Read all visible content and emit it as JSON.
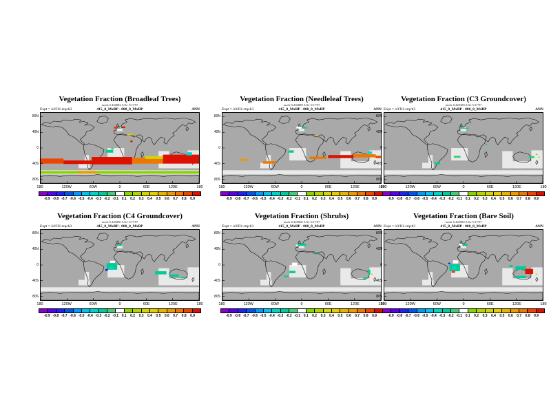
{
  "figure": {
    "background": "#ffffff",
    "layout": "2x3 montage of global vegetation-fraction anomaly maps"
  },
  "chart_data": {
    "type": "heatmap",
    "subtype": "global lat-lon difference maps, equirectangular 180W-180E / 90N-90S",
    "units": "vegetation fraction difference",
    "value_range": [
      -1,
      1
    ],
    "season": "ANN",
    "axes": {
      "x_ticks": [
        "180",
        "120W",
        "60W",
        "0",
        "60E",
        "120E",
        "180"
      ],
      "y_ticks": [
        "80N",
        "40N",
        "0",
        "40S",
        "80S"
      ]
    },
    "colorbar": {
      "tick_labels": [
        "-0.9",
        "-0.8",
        "-0.7",
        "-0.6",
        "-0.5",
        "-0.4",
        "-0.3",
        "-0.2",
        "-0.1",
        "0.1",
        "0.2",
        "0.3",
        "0.4",
        "0.5",
        "0.6",
        "0.7",
        "0.8",
        "0.9"
      ],
      "segment_colors": [
        "#8800cc",
        "#5500ee",
        "#2222ee",
        "#0055ee",
        "#0099ff",
        "#00c4f0",
        "#00d4c8",
        "#00cc99",
        "#44cc77",
        "#ffffff",
        "#88d400",
        "#b4d400",
        "#d4d400",
        "#e6cc00",
        "#e6b400",
        "#ee9900",
        "#ee7700",
        "#ee4400",
        "#dd1100"
      ]
    },
    "map_style": {
      "base_color": "#a9a9a9",
      "light_color": "#e9e9e9",
      "coast_color": "#141414",
      "light_regions": [
        [
          0,
          147,
          360,
          11
        ],
        [
          152,
          90,
          38,
          32
        ],
        [
          268,
          98,
          24,
          44
        ],
        [
          334,
          96,
          26,
          46
        ],
        [
          292,
          124,
          42,
          18
        ],
        [
          86,
          128,
          26,
          14
        ],
        [
          100,
          108,
          10,
          28
        ],
        [
          174,
          40,
          12,
          7
        ]
      ]
    },
    "panels": [
      {
        "slug": "broadleaf-trees",
        "title": "Vegetation Fraction (Broadleaf Trees)",
        "stats_line": "mode 0.426882 A/Se 5/17/97",
        "expt_label": "Expt = isYII1-trqch3",
        "diff_label": "415_0_MxBP - 000_0_MxBP",
        "season_label": "ANN",
        "patches": [
          [
            166,
            36,
            10,
            4,
            "#ee3300"
          ],
          [
            176,
            37,
            6,
            3,
            "#00cc99"
          ],
          [
            183,
            35,
            9,
            4,
            "#dd1100"
          ],
          [
            180,
            36,
            3,
            2,
            "#ffffff"
          ],
          [
            196,
            54,
            13,
            3,
            "#d4d400"
          ],
          [
            211,
            57,
            6,
            3,
            "#ee9900"
          ],
          [
            204,
            71,
            5,
            4,
            "#dd1100"
          ],
          [
            148,
            95,
            17,
            7,
            "#00cc99"
          ],
          [
            160,
            90,
            6,
            4,
            "#44cc77"
          ],
          [
            0,
            117,
            52,
            13,
            "#ee4400"
          ],
          [
            52,
            122,
            64,
            9,
            "#dd1100"
          ],
          [
            116,
            113,
            92,
            19,
            "#dd1100"
          ],
          [
            208,
            115,
            72,
            15,
            "#ee7700"
          ],
          [
            238,
            111,
            42,
            7,
            "#d4d400"
          ],
          [
            278,
            107,
            82,
            23,
            "#dd1100"
          ],
          [
            332,
            101,
            12,
            8,
            "#00d4c8"
          ],
          [
            0,
            149,
            360,
            7,
            "#88d400"
          ],
          [
            84,
            149,
            44,
            6,
            "#ee9900"
          ]
        ]
      },
      {
        "slug": "needleleaf-trees",
        "title": "Vegetation Fraction (Needleleaf Trees)",
        "stats_line": "mode 0.436880 A/Se 5/17/97",
        "expt_label": "Expt = isYII1-trqch3",
        "diff_label": "415_0_MxBP - 000_0_MxBP",
        "season_label": "ANN",
        "patches": [
          [
            168,
            35,
            12,
            5,
            "#ffffff"
          ],
          [
            180,
            36,
            9,
            4,
            "#00cc99"
          ],
          [
            190,
            37,
            4,
            3,
            "#33cc77"
          ],
          [
            210,
            57,
            8,
            3,
            "#d4d400"
          ],
          [
            150,
            96,
            12,
            6,
            "#00cc99"
          ],
          [
            198,
            112,
            38,
            6,
            "#ee7700"
          ],
          [
            240,
            108,
            58,
            8,
            "#dd1100"
          ],
          [
            298,
            106,
            50,
            8,
            "#ee7700"
          ],
          [
            348,
            110,
            12,
            6,
            "#ee4400"
          ],
          [
            92,
            124,
            30,
            6,
            "#ee7700"
          ],
          [
            40,
            118,
            20,
            5,
            "#ee9900"
          ],
          [
            330,
            99,
            10,
            6,
            "#00d4c8"
          ]
        ]
      },
      {
        "slug": "c3-groundcover",
        "title": "Vegetation Fraction (C3 Groundcover)",
        "stats_line": "mode 0.420390 A/Se 5/17/97",
        "expt_label": "Expt = isYII1-trqch3",
        "diff_label": "415_0_MxBP - 000_0_MxBP",
        "season_label": "ANN",
        "patches": [
          [
            174,
            37,
            11,
            4,
            "#33cc77"
          ],
          [
            186,
            38,
            6,
            3,
            "#00cc99"
          ],
          [
            181,
            36,
            4,
            2,
            "#ffffff"
          ],
          [
            158,
            110,
            15,
            5,
            "#33cc77"
          ],
          [
            114,
            127,
            13,
            5,
            "#00cc99"
          ],
          [
            328,
            111,
            13,
            5,
            "#33cc77"
          ],
          [
            344,
            105,
            4,
            3,
            "#88d400"
          ],
          [
            350,
            112,
            3,
            3,
            "#88d400"
          ],
          [
            230,
            79,
            4,
            3,
            "#00cc99"
          ]
        ]
      },
      {
        "slug": "c4-groundcover",
        "title": "Vegetation Fraction (C4 Groundcover)",
        "stats_line": "mode 0.426980 A/Se 5/17/97",
        "expt_label": "Expt = isYII1-trqch3",
        "diff_label": "415_0_MxBP - 000_0_MxBP",
        "season_label": "ANN",
        "patches": [
          [
            174,
            37,
            10,
            4,
            "#00cc99"
          ],
          [
            158,
            79,
            11,
            6,
            "#ffffff"
          ],
          [
            150,
            85,
            24,
            17,
            "#00cc99"
          ],
          [
            156,
            95,
            10,
            7,
            "#00d4c8"
          ],
          [
            147,
            100,
            6,
            5,
            "#2222ee"
          ],
          [
            260,
            106,
            26,
            8,
            "#00cc99"
          ],
          [
            292,
            114,
            22,
            6,
            "#00cc99"
          ],
          [
            318,
            120,
            10,
            4,
            "#00cc99"
          ]
        ]
      },
      {
        "slug": "shrubs",
        "title": "Vegetation Fraction (Shrubs)",
        "stats_line": "mode 0.420860 A/Se 5/17/97",
        "expt_label": "Expt = isYII1-trqch3",
        "diff_label": "415_0_MxBP - 000_0_MxBP",
        "season_label": "ANN",
        "patches": [
          [
            170,
            35,
            20,
            6,
            "#00cc99"
          ],
          [
            167,
            38,
            5,
            3,
            "#ffffff"
          ],
          [
            210,
            57,
            5,
            4,
            "#00cc99"
          ],
          [
            158,
            84,
            12,
            8,
            "#ffffff"
          ],
          [
            152,
            105,
            14,
            6,
            "#00cc99"
          ],
          [
            140,
            117,
            10,
            4,
            "#00cc99"
          ],
          [
            330,
            102,
            6,
            11,
            "#00cc99"
          ],
          [
            337,
            112,
            4,
            3,
            "#d4d400"
          ],
          [
            320,
            122,
            9,
            4,
            "#00cc99"
          ]
        ]
      },
      {
        "slug": "bare-soil",
        "title": "Vegetation Fraction (Bare Soil)",
        "stats_line": "mode 0.420980 A/Se 5/17/97",
        "expt_label": "Expt = isYII1-trqch3",
        "diff_label": "415_0_MxBP - 000_0_MxBP",
        "season_label": "ANN",
        "patches": [
          [
            170,
            35,
            7,
            5,
            "#ffffff"
          ],
          [
            178,
            36,
            11,
            5,
            "#00cc99"
          ],
          [
            169,
            41,
            3,
            3,
            "#2222ee"
          ],
          [
            156,
            78,
            12,
            8,
            "#ffffff"
          ],
          [
            148,
            88,
            24,
            18,
            "#00cc99"
          ],
          [
            154,
            94,
            8,
            11,
            "#00d4c8"
          ],
          [
            145,
            84,
            5,
            4,
            "#2222ee"
          ],
          [
            153,
            104,
            8,
            6,
            "#ee4400"
          ],
          [
            298,
            93,
            24,
            9,
            "#00cc99"
          ],
          [
            284,
            90,
            8,
            5,
            "#00cc99"
          ],
          [
            320,
            100,
            18,
            13,
            "#dd1100"
          ],
          [
            298,
            118,
            24,
            6,
            "#00cc99"
          ],
          [
            344,
            112,
            4,
            3,
            "#d4d400"
          ]
        ]
      }
    ]
  }
}
